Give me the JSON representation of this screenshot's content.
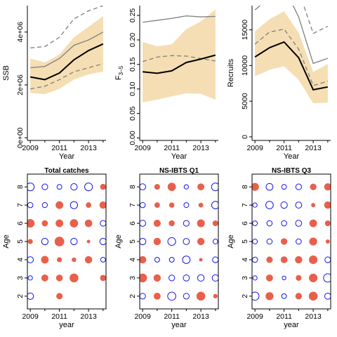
{
  "chart_data": [
    {
      "id": "ssb",
      "type": "line",
      "title": "",
      "xlabel": "Year",
      "ylabel": "SSB",
      "x": [
        2009,
        2010,
        2011,
        2012,
        2013,
        2014
      ],
      "xlim": [
        2008.8,
        2014.2
      ],
      "ylim": [
        -100000,
        5000000
      ],
      "xticks": [
        2009,
        2011,
        2013
      ],
      "yticks": [
        0,
        2000000,
        4000000
      ],
      "ytick_labels": [
        "0e+00",
        "2e+06",
        "4e+06"
      ],
      "band": {
        "lower": [
          1700000,
          1650000,
          1850000,
          2200000,
          2400000,
          2500000
        ],
        "upper": [
          3000000,
          2850000,
          3150000,
          3800000,
          4200000,
          4600000
        ]
      },
      "series": [
        {
          "style": "solid-thick",
          "values": [
            2300000,
            2200000,
            2450000,
            2950000,
            3300000,
            3550000
          ]
        },
        {
          "style": "grey-solid",
          "values": [
            2650000,
            2700000,
            3000000,
            3500000,
            3700000,
            4000000
          ]
        },
        {
          "style": "grey-dashed",
          "values": [
            3400000,
            3450000,
            3800000,
            4500000,
            4800000,
            5000000
          ]
        },
        {
          "style": "grey-dashed",
          "values": [
            1850000,
            1950000,
            2200000,
            2500000,
            2650000,
            2800000
          ]
        }
      ]
    },
    {
      "id": "fbar",
      "type": "line",
      "title": "",
      "xlabel": "Year",
      "ylabel": "F",
      "ylabel_sub": "3−5",
      "x": [
        2009,
        2010,
        2011,
        2012,
        2013,
        2014
      ],
      "xlim": [
        2008.8,
        2014.2
      ],
      "ylim": [
        -0.005,
        0.27
      ],
      "xticks": [
        2009,
        2011,
        2013
      ],
      "yticks": [
        0.0,
        0.05,
        0.1,
        0.15,
        0.2,
        0.25
      ],
      "ytick_labels": [
        "0.00",
        "0.05",
        "0.10",
        "0.15",
        "0.20",
        "0.25"
      ],
      "band": {
        "lower": [
          0.073,
          0.078,
          0.085,
          0.091,
          0.09,
          0.078
        ],
        "upper": [
          0.196,
          0.187,
          0.191,
          0.222,
          0.238,
          0.262
        ]
      },
      "series": [
        {
          "style": "solid-thick",
          "values": [
            0.135,
            0.132,
            0.137,
            0.154,
            0.161,
            0.169
          ]
        },
        {
          "style": "grey-solid",
          "values": [
            0.236,
            0.24,
            0.244,
            0.249,
            0.247,
            0.248
          ]
        },
        {
          "style": "grey-dashed",
          "values": [
            0.156,
            0.165,
            0.168,
            0.167,
            0.162,
            0.157
          ]
        }
      ]
    },
    {
      "id": "recruits",
      "type": "line",
      "title": "",
      "xlabel": "Year",
      "ylabel": "Recruits",
      "x": [
        2009,
        2010,
        2011,
        2012,
        2013,
        2014
      ],
      "xlim": [
        2008.8,
        2014.2
      ],
      "ylim": [
        -500,
        18400
      ],
      "xticks": [
        2009,
        2011,
        2013
      ],
      "yticks": [
        0,
        5000,
        10000,
        15000
      ],
      "ytick_labels": [
        "0",
        "5000",
        "10000",
        "15000"
      ],
      "band": {
        "lower": [
          8500,
          9400,
          9900,
          8000,
          4700,
          4800
        ],
        "upper": [
          14800,
          16500,
          17600,
          14600,
          9100,
          10200
        ]
      },
      "series": [
        {
          "style": "solid-thick",
          "values": [
            11200,
            12500,
            13300,
            11100,
            6600,
            7000
          ]
        },
        {
          "style": "grey-solid",
          "values": [
            17800,
            19500,
            21000,
            16800,
            10300,
            11000
          ]
        },
        {
          "style": "grey-dashed",
          "values": [
            13000,
            14700,
            15100,
            12300,
            7200,
            7800
          ]
        },
        {
          "style": "grey-dashed",
          "values": [
            null,
            null,
            22000,
            20500,
            14500,
            15500
          ]
        }
      ]
    },
    {
      "id": "bubble_total",
      "type": "scatter",
      "title": "Total catches",
      "xlabel": "year",
      "ylabel": "Age",
      "x": [
        2009,
        2010,
        2011,
        2012,
        2013,
        2014
      ],
      "ages": [
        2,
        3,
        4,
        5,
        6,
        7,
        8
      ],
      "xlim": [
        2008.8,
        2014.2
      ],
      "ylim": [
        1.3,
        8.7
      ],
      "xticks": [
        2009,
        2011,
        2013
      ],
      "yticks": [
        2,
        3,
        4,
        5,
        6,
        7,
        8
      ],
      "residuals": [
        [
          -0.9,
          null,
          0.75,
          null,
          null,
          null
        ],
        [
          -0.4,
          0.9,
          0.85,
          1.5,
          null,
          0.7
        ],
        [
          -0.8,
          1.1,
          0.45,
          0.35,
          1.0,
          -0.5
        ],
        [
          0.45,
          -0.9,
          1.8,
          -0.9,
          0.2,
          -0.9
        ],
        [
          1.4,
          0.7,
          1.1,
          1.3,
          1.05,
          -0.7
        ],
        [
          -0.6,
          -0.55,
          1.1,
          -1.1,
          0.55,
          1.0
        ],
        [
          -1.3,
          -0.7,
          -0.5,
          -0.9,
          -1.3,
          0.65
        ]
      ]
    },
    {
      "id": "bubble_q1",
      "type": "scatter",
      "title": "NS-IBTS Q1",
      "xlabel": "year",
      "ylabel": "Age",
      "x": [
        2009,
        2010,
        2011,
        2012,
        2013,
        2014
      ],
      "ages": [
        2,
        3,
        4,
        5,
        6,
        7,
        8
      ],
      "xlim": [
        2008.8,
        2014.2
      ],
      "ylim": [
        1.3,
        8.7
      ],
      "xticks": [
        2009,
        2011,
        2013
      ],
      "yticks": [
        2,
        3,
        4,
        5,
        6,
        7,
        8
      ],
      "residuals": [
        [
          -0.7,
          0.9,
          -1.4,
          -0.7,
          1.5,
          0.35
        ],
        [
          1.5,
          1.0,
          -0.7,
          -0.8,
          -0.9,
          -0.9
        ],
        [
          1.0,
          -0.5,
          -0.5,
          -1.2,
          0.2,
          -0.7
        ],
        [
          -0.9,
          1.0,
          -1.3,
          -0.8,
          1.0,
          -0.5
        ],
        [
          -0.8,
          0.95,
          0.65,
          -0.7,
          1.15,
          0.6
        ],
        [
          -0.6,
          0.55,
          0.5,
          -0.5,
          0.4,
          -1.2
        ],
        [
          -0.8,
          0.6,
          1.3,
          -0.4,
          0.9,
          -1.3
        ]
      ]
    },
    {
      "id": "bubble_q3",
      "type": "scatter",
      "title": "NS-IBTS Q3",
      "xlabel": "year",
      "ylabel": "Age",
      "x": [
        2009,
        2010,
        2011,
        2012,
        2013,
        2014
      ],
      "ages": [
        2,
        3,
        4,
        5,
        6,
        7,
        8
      ],
      "xlim": [
        2008.8,
        2014.2
      ],
      "ylim": [
        1.3,
        8.7
      ],
      "xticks": [
        2009,
        2011,
        2013
      ],
      "yticks": [
        2,
        3,
        4,
        5,
        6,
        7,
        8
      ],
      "residuals": [
        [
          -1.4,
          1.2,
          -0.5,
          0.8,
          1.5,
          -0.8
        ],
        [
          -0.4,
          0.9,
          -0.3,
          0.6,
          1.4,
          -1.5
        ],
        [
          -0.6,
          0.75,
          0.85,
          1.0,
          1.4,
          -0.7
        ],
        [
          -0.5,
          -0.6,
          0.8,
          -0.6,
          1.2,
          0.3
        ],
        [
          -0.5,
          -0.6,
          -0.6,
          -0.8,
          1.1,
          0.6
        ],
        [
          -0.4,
          -1.2,
          -0.9,
          -0.8,
          0.3,
          1.0
        ],
        [
          1.2,
          -1.0,
          -0.5,
          -0.7,
          0.8,
          1.0
        ]
      ]
    }
  ]
}
